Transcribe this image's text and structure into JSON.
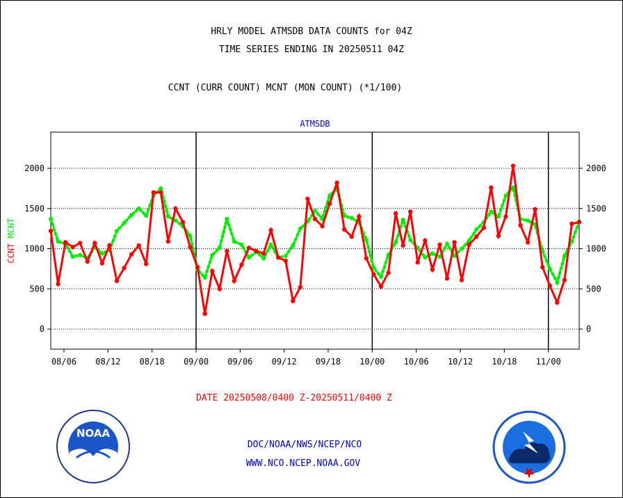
{
  "header": {
    "line1": "HRLY MODEL ATMSDB DATA COUNTS for 04Z",
    "line2": "TIME SERIES ENDING IN 20250511 04Z",
    "line3": "CCNT (CURR COUNT) MCNT (MON COUNT) (*1/100)"
  },
  "footer": {
    "date_range": "DATE 20250508/0400 Z-20250511/0400 Z",
    "org": "DOC/NOAA/NWS/NCEP/NCO",
    "url": "WWW.NCO.NCEP.NOAA.GOV"
  },
  "logos": {
    "left": "noaa-logo",
    "right": "national-weather-service-logo",
    "left_text": "NOAA"
  },
  "chart_data": {
    "type": "line",
    "title": "ATMSDB",
    "ylabel_left": [
      "CCNT",
      "MCNT"
    ],
    "ylim": [
      -250,
      2450
    ],
    "yticks": [
      0,
      500,
      1000,
      1500,
      2000
    ],
    "grid": true,
    "x_index_range": [
      0,
      60
    ],
    "xtick_labels": [
      {
        "i": 1.5,
        "label": "08/06"
      },
      {
        "i": 6.5,
        "label": "08/12"
      },
      {
        "i": 11.5,
        "label": "08/18"
      },
      {
        "i": 16.5,
        "label": "09/00"
      },
      {
        "i": 21.5,
        "label": "09/06"
      },
      {
        "i": 26.5,
        "label": "09/12"
      },
      {
        "i": 31.5,
        "label": "09/18"
      },
      {
        "i": 36.5,
        "label": "10/00"
      },
      {
        "i": 41.5,
        "label": "10/06"
      },
      {
        "i": 46.5,
        "label": "10/12"
      },
      {
        "i": 51.5,
        "label": "10/18"
      },
      {
        "i": 56.5,
        "label": "11/00"
      }
    ],
    "day_dividers": [
      16.5,
      36.5,
      56.5
    ],
    "series": [
      {
        "name": "CCNT",
        "color": "#ff0000",
        "values": [
          1220,
          560,
          1080,
          1020,
          1070,
          840,
          1070,
          820,
          1040,
          600,
          760,
          930,
          1040,
          810,
          1700,
          1700,
          1090,
          1500,
          1330,
          1020,
          770,
          190,
          720,
          500,
          970,
          600,
          800,
          1010,
          970,
          940,
          1230,
          890,
          850,
          350,
          520,
          1620,
          1370,
          1280,
          1560,
          1820,
          1240,
          1150,
          1400,
          880,
          680,
          530,
          700,
          1440,
          1040,
          1460,
          830,
          1100,
          740,
          1050,
          630,
          1080,
          610,
          1050,
          1150,
          1260,
          1760,
          1160,
          1400,
          2030,
          1290,
          1080,
          1490,
          770,
          540,
          330,
          610,
          1310,
          1330
        ]
      },
      {
        "name": "MCNT",
        "color": "#00ee00",
        "values": [
          1370,
          1090,
          1060,
          900,
          920,
          880,
          1020,
          940,
          980,
          1220,
          1320,
          1420,
          1500,
          1410,
          1660,
          1750,
          1400,
          1350,
          1280,
          1160,
          740,
          640,
          920,
          1010,
          1370,
          1090,
          1050,
          890,
          960,
          880,
          1050,
          890,
          910,
          1040,
          1250,
          1340,
          1470,
          1370,
          1660,
          1750,
          1410,
          1380,
          1330,
          1110,
          760,
          650,
          920,
          1080,
          1360,
          1110,
          1010,
          890,
          940,
          900,
          1060,
          910,
          1000,
          1100,
          1240,
          1330,
          1460,
          1400,
          1660,
          1760,
          1370,
          1350,
          1300,
          970,
          750,
          580,
          910,
          1090,
          1340
        ]
      }
    ]
  }
}
